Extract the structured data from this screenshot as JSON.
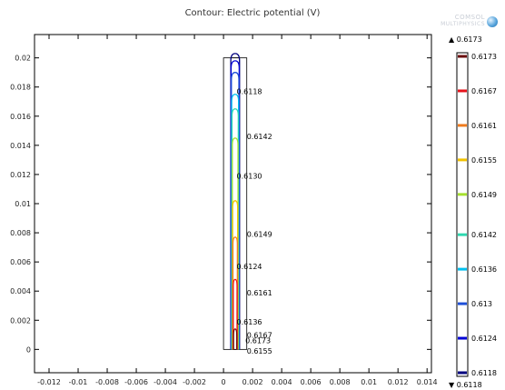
{
  "chart_data": {
    "type": "contour",
    "title": "Contour: Electric potential (V)",
    "xlim": [
      -0.013,
      0.0143
    ],
    "ylim": [
      -0.0016,
      0.0216
    ],
    "x_ticks": [
      "-0.012",
      "-0.01",
      "-0.008",
      "-0.006",
      "-0.004",
      "-0.002",
      "0",
      "0.002",
      "0.004",
      "0.006",
      "0.008",
      "0.01",
      "0.012",
      "0.014"
    ],
    "x_tick_values": [
      -0.012,
      -0.01,
      -0.008,
      -0.006,
      -0.004,
      -0.002,
      0,
      0.002,
      0.004,
      0.006,
      0.008,
      0.01,
      0.012,
      0.014
    ],
    "y_ticks": [
      "0",
      "0.002",
      "0.004",
      "0.006",
      "0.008",
      "0.01",
      "0.012",
      "0.014",
      "0.016",
      "0.018",
      "0.02"
    ],
    "y_tick_values": [
      0,
      0.002,
      0.004,
      0.006,
      0.008,
      0.01,
      0.012,
      0.014,
      0.016,
      0.018,
      0.02
    ],
    "geometry": {
      "outer_rect": {
        "x0": 0,
        "x1": 0.0016,
        "y0": 0,
        "y1": 0.02
      },
      "inner_rect": {
        "x0": 0.0005,
        "x1": 0.0011,
        "y0": 0,
        "y1": 0.02
      }
    },
    "levels": [
      {
        "value": 0.6118,
        "color": "#00007f",
        "label": "0.6118"
      },
      {
        "value": 0.6124,
        "color": "#0000d6",
        "label": "0.6124"
      },
      {
        "value": 0.613,
        "color": "#1e4fd8",
        "label": "0.613"
      },
      {
        "value": 0.6136,
        "color": "#00c0ef",
        "label": "0.6136"
      },
      {
        "value": 0.6142,
        "color": "#2ed9b0",
        "label": "0.6142"
      },
      {
        "value": 0.6149,
        "color": "#a6e22e",
        "label": "0.6149"
      },
      {
        "value": 0.6155,
        "color": "#f2c200",
        "label": "0.6155"
      },
      {
        "value": 0.6161,
        "color": "#f07c1e",
        "label": "0.6161"
      },
      {
        "value": 0.6167,
        "color": "#e8121a",
        "label": "0.6167"
      },
      {
        "value": 0.6173,
        "color": "#6a0d0d",
        "label": "0.6173"
      }
    ],
    "contour_tops": [
      0.0203,
      0.0198,
      0.019,
      0.0175,
      0.0165,
      0.0145,
      0.0102,
      0.0077,
      0.0048,
      0.0014
    ],
    "contour_labels": [
      {
        "text": "0.6118",
        "x": 0.0009,
        "y": 0.0177
      },
      {
        "text": "0.6142",
        "x": 0.0016,
        "y": 0.0146
      },
      {
        "text": "0.6130",
        "x": 0.0009,
        "y": 0.0119
      },
      {
        "text": "0.6149",
        "x": 0.0016,
        "y": 0.0079
      },
      {
        "text": "0.6124",
        "x": 0.0009,
        "y": 0.0057
      },
      {
        "text": "0.6161",
        "x": 0.0016,
        "y": 0.0039
      },
      {
        "text": "0.6136",
        "x": 0.0009,
        "y": 0.0019
      },
      {
        "text": "0.6167",
        "x": 0.0016,
        "y": 0.001
      },
      {
        "text": "0.6173",
        "x": 0.0015,
        "y": 0.0006
      },
      {
        "text": "0.6155",
        "x": 0.0016,
        "y": -0.0001
      }
    ],
    "legend": {
      "position": "right",
      "max_label": "▲ 0.6173",
      "min_label": "▼ 0.6118"
    }
  },
  "watermark": {
    "line1": "COMSOL",
    "line2": "MULTIPHYSICS"
  }
}
